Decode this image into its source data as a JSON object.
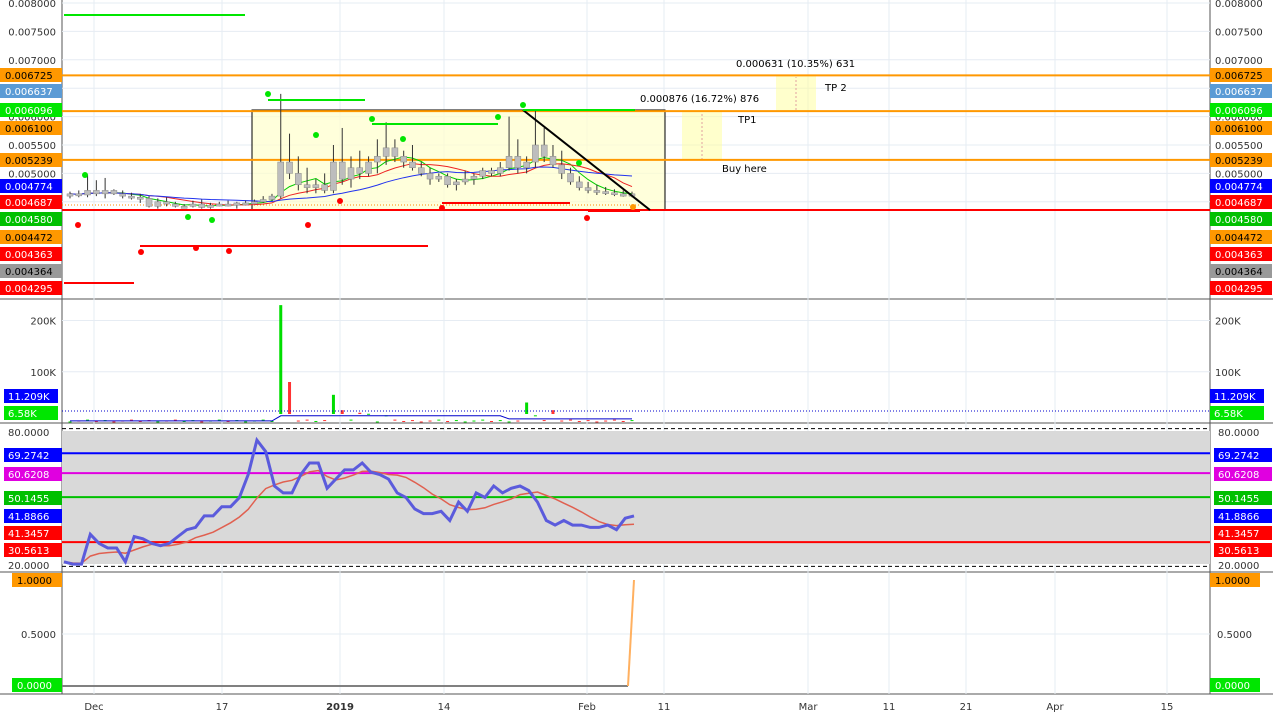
{
  "chart_data": {
    "type": "line",
    "panes": {
      "price": {
        "type": "candlestick",
        "ylim": [
          0.0042,
          0.008
        ],
        "tick_labels": [
          "0.008000",
          "0.007500",
          "0.007000",
          "0.006500",
          "0.006000",
          "0.005500",
          "0.005000",
          "0.004500"
        ],
        "tick_values": [
          0.008,
          0.0075,
          0.007,
          0.0065,
          0.006,
          0.0055,
          0.005,
          0.0045
        ],
        "levels": [
          {
            "label": "0.006725",
            "value": 0.006725,
            "color": "#ff9800"
          },
          {
            "label": "0.006637",
            "value": 0.006637,
            "color": "#5b9bd5"
          },
          {
            "label": "0.006096",
            "value": 0.006096,
            "color": "#00e600"
          },
          {
            "label": "0.006100",
            "value": 0.0061,
            "color": "#ff9800"
          },
          {
            "label": "0.005239",
            "value": 0.005239,
            "color": "#ff9800"
          },
          {
            "label": "0.004774",
            "value": 0.004774,
            "color": "#0000ff"
          },
          {
            "label": "0.004687",
            "value": 0.004687,
            "color": "#ff0000"
          },
          {
            "label": "0.004580",
            "value": 0.00458,
            "color": "#00c000"
          },
          {
            "label": "0.004472",
            "value": 0.004472,
            "color": "#ff9800"
          },
          {
            "label": "0.004363",
            "value": 0.004363,
            "color": "#ff0000"
          },
          {
            "label": "0.004364",
            "value": 0.004364,
            "color": "#999999"
          },
          {
            "label": "0.004295",
            "value": 0.004295,
            "color": "#ff0000"
          }
        ],
        "annotations": [
          {
            "text": "0.000631 (10.35%) 631"
          },
          {
            "text": "TP 2"
          },
          {
            "text": "0.000876 (16.72%) 876"
          },
          {
            "text": "TP1"
          },
          {
            "text": "Buy here"
          }
        ],
        "candles": [
          [
            0.0046,
            0.00468,
            0.00456,
            0.00464
          ],
          [
            0.00464,
            0.0047,
            0.00458,
            0.00462
          ],
          [
            0.00462,
            0.00498,
            0.00458,
            0.0047
          ],
          [
            0.0047,
            0.00488,
            0.0046,
            0.00464
          ],
          [
            0.00464,
            0.00492,
            0.00456,
            0.0047
          ],
          [
            0.0047,
            0.00472,
            0.00462,
            0.00464
          ],
          [
            0.00464,
            0.0047,
            0.00456,
            0.0046
          ],
          [
            0.0046,
            0.00466,
            0.00454,
            0.00458
          ],
          [
            0.00458,
            0.00464,
            0.00448,
            0.00456
          ],
          [
            0.00456,
            0.0046,
            0.0044,
            0.00442
          ],
          [
            0.00442,
            0.00456,
            0.00438,
            0.0045
          ],
          [
            0.0045,
            0.00458,
            0.00442,
            0.00446
          ],
          [
            0.00446,
            0.0045,
            0.0044,
            0.00442
          ],
          [
            0.00442,
            0.00446,
            0.0044,
            0.00442
          ],
          [
            0.00442,
            0.00452,
            0.0044,
            0.00446
          ],
          [
            0.00446,
            0.00454,
            0.00438,
            0.0044
          ],
          [
            0.0044,
            0.00448,
            0.00438,
            0.00444
          ],
          [
            0.00444,
            0.0045,
            0.00442,
            0.00446
          ],
          [
            0.00446,
            0.00452,
            0.00442,
            0.00444
          ],
          [
            0.00444,
            0.0045,
            0.00438,
            0.00448
          ],
          [
            0.00448,
            0.00452,
            0.00444,
            0.00448
          ],
          [
            0.00448,
            0.00454,
            0.00446,
            0.0045
          ],
          [
            0.0045,
            0.0046,
            0.00448,
            0.00454
          ],
          [
            0.00454,
            0.00464,
            0.00452,
            0.0046
          ],
          [
            0.0046,
            0.0064,
            0.00456,
            0.0052
          ],
          [
            0.0052,
            0.0057,
            0.0049,
            0.005
          ],
          [
            0.005,
            0.0053,
            0.0047,
            0.0048
          ],
          [
            0.0048,
            0.0051,
            0.00465,
            0.00475
          ],
          [
            0.00475,
            0.0049,
            0.00465,
            0.0048
          ],
          [
            0.0048,
            0.005,
            0.00465,
            0.0047
          ],
          [
            0.0047,
            0.0055,
            0.00465,
            0.0052
          ],
          [
            0.0052,
            0.0058,
            0.0048,
            0.0049
          ],
          [
            0.0049,
            0.0053,
            0.00475,
            0.0051
          ],
          [
            0.0051,
            0.0054,
            0.0049,
            0.005
          ],
          [
            0.005,
            0.0053,
            0.00495,
            0.0052
          ],
          [
            0.0052,
            0.0056,
            0.005,
            0.0053
          ],
          [
            0.0053,
            0.0059,
            0.00515,
            0.00545
          ],
          [
            0.00545,
            0.0056,
            0.0052,
            0.0053
          ],
          [
            0.0053,
            0.0054,
            0.0051,
            0.0052
          ],
          [
            0.0052,
            0.0055,
            0.00505,
            0.0051
          ],
          [
            0.0051,
            0.0052,
            0.00495,
            0.005
          ],
          [
            0.005,
            0.0051,
            0.0048,
            0.0049
          ],
          [
            0.0049,
            0.005,
            0.00485,
            0.00495
          ],
          [
            0.00495,
            0.005,
            0.00475,
            0.0048
          ],
          [
            0.0048,
            0.0049,
            0.0047,
            0.00485
          ],
          [
            0.00485,
            0.00505,
            0.0048,
            0.0049
          ],
          [
            0.0049,
            0.005,
            0.0048,
            0.00495
          ],
          [
            0.00495,
            0.0051,
            0.0049,
            0.00505
          ],
          [
            0.00505,
            0.0051,
            0.00495,
            0.005
          ],
          [
            0.005,
            0.0052,
            0.00495,
            0.0051
          ],
          [
            0.0051,
            0.006,
            0.00505,
            0.0053
          ],
          [
            0.0053,
            0.0056,
            0.005,
            0.0051
          ],
          [
            0.0051,
            0.0053,
            0.005,
            0.0052
          ],
          [
            0.0052,
            0.0061,
            0.0051,
            0.0055
          ],
          [
            0.0055,
            0.0058,
            0.0052,
            0.0053
          ],
          [
            0.0053,
            0.0055,
            0.0051,
            0.00515
          ],
          [
            0.00515,
            0.0054,
            0.0049,
            0.005
          ],
          [
            0.005,
            0.0051,
            0.0048,
            0.00485
          ],
          [
            0.00485,
            0.00495,
            0.0047,
            0.00475
          ],
          [
            0.00475,
            0.00485,
            0.00465,
            0.0047
          ],
          [
            0.0047,
            0.0048,
            0.00462,
            0.00468
          ],
          [
            0.00468,
            0.00476,
            0.00462,
            0.00466
          ],
          [
            0.00466,
            0.00472,
            0.0046,
            0.00464
          ],
          [
            0.00464,
            0.0047,
            0.00459,
            0.0046
          ],
          [
            0.0046,
            0.00468,
            0.00458,
            0.00464
          ]
        ]
      },
      "volume": {
        "tick_labels": [
          "200K",
          "100K"
        ],
        "tick_values": [
          200000,
          100000
        ],
        "ylim": [
          0,
          240000
        ],
        "levels": [
          {
            "label": "11.209K",
            "value": 11209,
            "color": "#0000ff"
          },
          {
            "label": "6.58K",
            "value": 6580,
            "color": "#00e600"
          }
        ]
      },
      "rsi": {
        "ylim": [
          18,
          82
        ],
        "levels": [
          {
            "label": "80.0000",
            "value": 80,
            "color": "#000000"
          },
          {
            "label": "69.2742",
            "value": 69.2742,
            "color": "#0000ff"
          },
          {
            "label": "60.6208",
            "value": 60.6208,
            "color": "#e000e0"
          },
          {
            "label": "50.1455",
            "value": 50.1455,
            "color": "#00c000"
          },
          {
            "label": "41.8866",
            "value": 41.8866,
            "color": "#0000ff"
          },
          {
            "label": "41.3457",
            "value": 41.3457,
            "color": "#ff0000"
          },
          {
            "label": "30.5613",
            "value": 30.5613,
            "color": "#ff0000"
          },
          {
            "label": "20.0000",
            "value": 20,
            "color": "#000000"
          }
        ]
      },
      "signal": {
        "ylim": [
          -0.05,
          1.05
        ],
        "tick_labels": [
          "0.5000"
        ],
        "tick_values": [
          0.5
        ],
        "levels": [
          {
            "label": "1.0000",
            "value": 1,
            "color": "#ff9800"
          },
          {
            "label": "0.0000",
            "value": 0,
            "color": "#00e600"
          }
        ]
      }
    },
    "x_axis": {
      "labels": [
        "Dec",
        "17",
        "2019",
        "14",
        "Feb",
        "11",
        "Mar",
        "11",
        "21",
        "Apr",
        "15"
      ]
    }
  }
}
